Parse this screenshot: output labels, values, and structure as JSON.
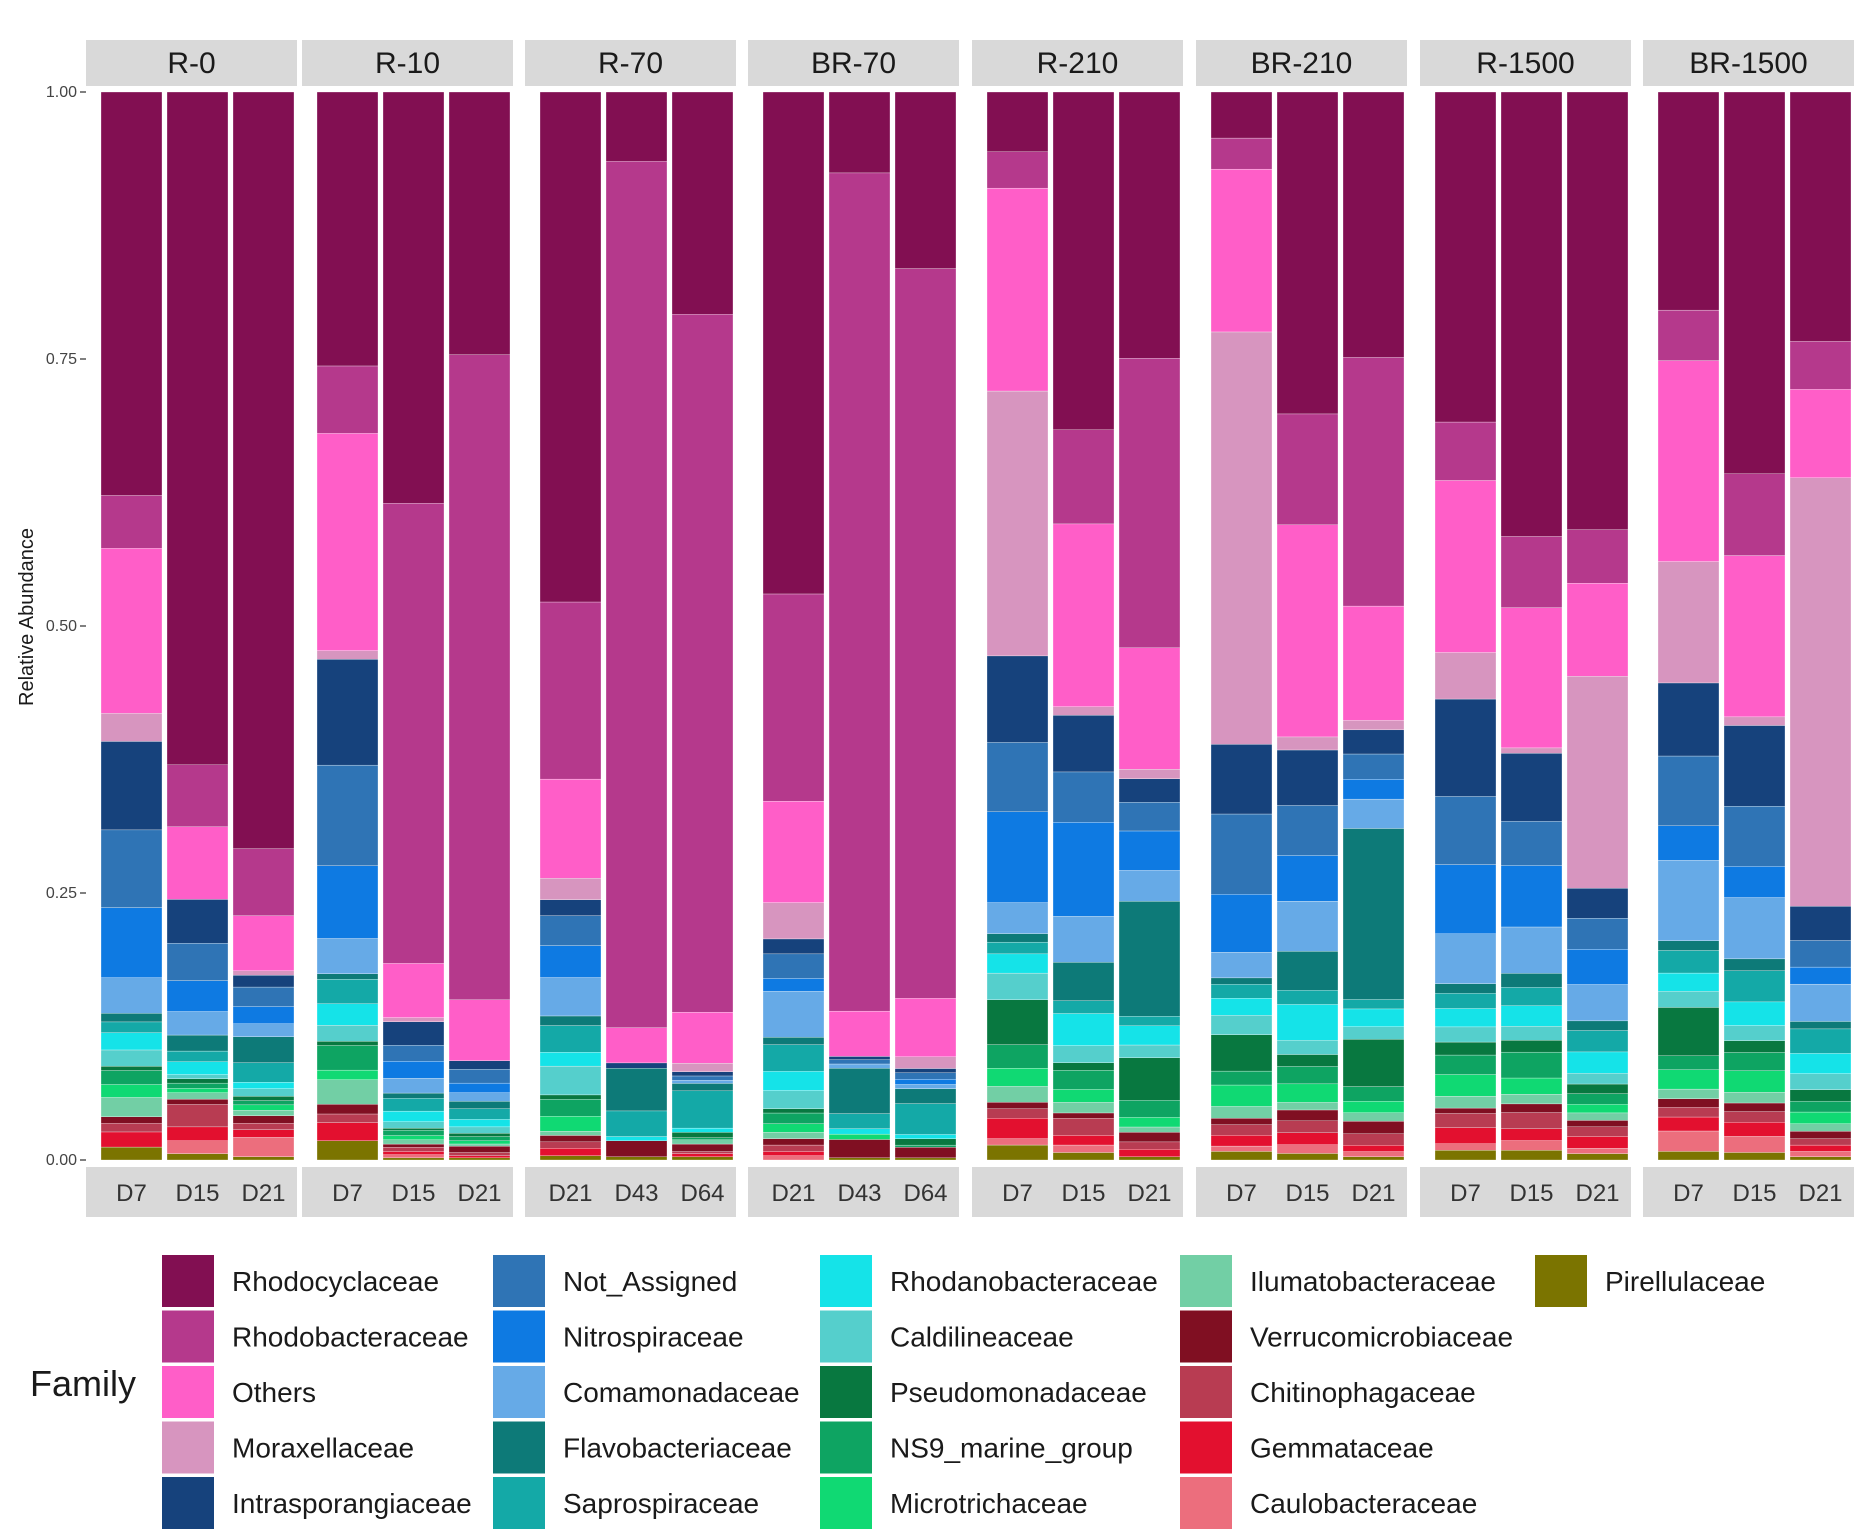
{
  "chart_data": {
    "type": "bar",
    "stacked": true,
    "ylabel": "Relative Abundance",
    "ylim": [
      0,
      1
    ],
    "yticks": [
      "0.00",
      "0.25",
      "0.50",
      "0.75",
      "1.00"
    ],
    "grid": false,
    "legend": {
      "title": "Family",
      "placement": "bottom",
      "entries": [
        {
          "name": "Rhodocyclaceae",
          "color": "#820f52"
        },
        {
          "name": "Rhodobacteraceae",
          "color": "#b5398c"
        },
        {
          "name": "Others",
          "color": "#ff5ec8"
        },
        {
          "name": "Moraxellaceae",
          "color": "#d795bf"
        },
        {
          "name": "Intrasporangiaceae",
          "color": "#16427c"
        },
        {
          "name": "Not_Assigned",
          "color": "#2f74b5"
        },
        {
          "name": "Nitrospiraceae",
          "color": "#0e7ae2"
        },
        {
          "name": "Comamonadaceae",
          "color": "#66aae7"
        },
        {
          "name": "Flavobacteriaceae",
          "color": "#0d7a78"
        },
        {
          "name": "Saprospiraceae",
          "color": "#14a9a7"
        },
        {
          "name": "Rhodanobacteraceae",
          "color": "#15e3e8"
        },
        {
          "name": "Caldilineaceae",
          "color": "#55cfcc"
        },
        {
          "name": "Pseudomonadaceae",
          "color": "#087840"
        },
        {
          "name": "NS9_marine_group",
          "color": "#0ea462"
        },
        {
          "name": "Microtrichaceae",
          "color": "#10d973"
        },
        {
          "name": "Ilumatobacteraceae",
          "color": "#72cfa5"
        },
        {
          "name": "Verrucomicrobiaceae",
          "color": "#800f22"
        },
        {
          "name": "Chitinophagaceae",
          "color": "#b83c52"
        },
        {
          "name": "Gemmataceae",
          "color": "#e3102f"
        },
        {
          "name": "Caulobacteraceae",
          "color": "#ec6e7d"
        },
        {
          "name": "Pirellulaceae",
          "color": "#7b7400"
        }
      ]
    },
    "panels": [
      {
        "name": "R-0",
        "bars": [
          {
            "label": "D7",
            "values": [
              0.374,
              0.049,
              0.153,
              0.026,
              0.082,
              0.072,
              0.065,
              0.033,
              0.008,
              0.01,
              0.016,
              0.015,
              0.004,
              0.013,
              0.012,
              0.018,
              0.006,
              0.008,
              0.014,
              0.0,
              0.012
            ]
          },
          {
            "label": "D15",
            "values": [
              0.63,
              0.058,
              0.068,
              0.0,
              0.041,
              0.035,
              0.029,
              0.022,
              0.015,
              0.01,
              0.012,
              0.004,
              0.004,
              0.005,
              0.004,
              0.006,
              0.005,
              0.021,
              0.013,
              0.012,
              0.006
            ]
          },
          {
            "label": "D21",
            "values": [
              0.7,
              0.062,
              0.051,
              0.004,
              0.011,
              0.018,
              0.016,
              0.012,
              0.024,
              0.018,
              0.006,
              0.007,
              0.004,
              0.004,
              0.005,
              0.005,
              0.007,
              0.006,
              0.007,
              0.018,
              0.003
            ]
          }
        ]
      },
      {
        "name": "R-10",
        "bars": [
          {
            "label": "D7",
            "values": [
              0.256,
              0.063,
              0.203,
              0.008,
              0.099,
              0.094,
              0.068,
              0.033,
              0.005,
              0.023,
              0.02,
              0.015,
              0.004,
              0.023,
              0.009,
              0.023,
              0.009,
              0.008,
              0.017,
              0.0,
              0.018
            ]
          },
          {
            "label": "D15",
            "values": [
              0.387,
              0.433,
              0.051,
              0.004,
              0.022,
              0.015,
              0.016,
              0.014,
              0.005,
              0.012,
              0.01,
              0.006,
              0.002,
              0.005,
              0.004,
              0.004,
              0.003,
              0.004,
              0.003,
              0.003,
              0.002
            ]
          },
          {
            "label": "D21",
            "values": [
              0.246,
              0.604,
              0.057,
              0.0,
              0.008,
              0.013,
              0.009,
              0.008,
              0.007,
              0.01,
              0.007,
              0.006,
              0.003,
              0.004,
              0.003,
              0.002,
              0.006,
              0.003,
              0.002,
              0.0,
              0.002
            ]
          }
        ]
      },
      {
        "name": "R-70",
        "bars": [
          {
            "label": "D21",
            "values": [
              0.478,
              0.166,
              0.093,
              0.02,
              0.015,
              0.028,
              0.03,
              0.036,
              0.009,
              0.025,
              0.013,
              0.027,
              0.004,
              0.016,
              0.014,
              0.004,
              0.006,
              0.006,
              0.007,
              0.0,
              0.004
            ]
          },
          {
            "label": "D43",
            "values": [
              0.065,
              0.812,
              0.033,
              0.0,
              0.005,
              0.0,
              0.0,
              0.0,
              0.04,
              0.024,
              0.004,
              0.0,
              0.0,
              0.0,
              0.0,
              0.0,
              0.015,
              0.0,
              0.0,
              0.0,
              0.003
            ]
          },
          {
            "label": "D64",
            "values": [
              0.209,
              0.656,
              0.048,
              0.008,
              0.004,
              0.004,
              0.0,
              0.003,
              0.007,
              0.035,
              0.004,
              0.0,
              0.005,
              0.002,
              0.0,
              0.004,
              0.007,
              0.002,
              0.003,
              0.0,
              0.003
            ]
          }
        ]
      },
      {
        "name": "BR-70",
        "bars": [
          {
            "label": "D21",
            "values": [
              0.47,
              0.194,
              0.095,
              0.034,
              0.014,
              0.023,
              0.012,
              0.043,
              0.007,
              0.025,
              0.018,
              0.017,
              0.004,
              0.01,
              0.008,
              0.006,
              0.006,
              0.006,
              0.004,
              0.004,
              0.0
            ]
          },
          {
            "label": "D43",
            "values": [
              0.075,
              0.777,
              0.042,
              0.0,
              0.003,
              0.004,
              0.0,
              0.004,
              0.042,
              0.014,
              0.005,
              0.0,
              0.0,
              0.0,
              0.005,
              0.0,
              0.017,
              0.0,
              0.0,
              0.0,
              0.002
            ]
          },
          {
            "label": "D64",
            "values": [
              0.166,
              0.686,
              0.055,
              0.011,
              0.004,
              0.006,
              0.005,
              0.004,
              0.014,
              0.029,
              0.004,
              0.0,
              0.006,
              0.002,
              0.0,
              0.0,
              0.01,
              0.0,
              0.0,
              0.0,
              0.002
            ]
          }
        ]
      },
      {
        "name": "R-210",
        "bars": [
          {
            "label": "D7",
            "values": [
              0.056,
              0.034,
              0.19,
              0.248,
              0.081,
              0.065,
              0.085,
              0.029,
              0.008,
              0.011,
              0.018,
              0.025,
              0.042,
              0.022,
              0.017,
              0.015,
              0.006,
              0.009,
              0.019,
              0.006,
              0.014
            ]
          },
          {
            "label": "D15",
            "values": [
              0.316,
              0.088,
              0.171,
              0.008,
              0.053,
              0.047,
              0.088,
              0.043,
              0.036,
              0.012,
              0.03,
              0.016,
              0.007,
              0.018,
              0.012,
              0.01,
              0.005,
              0.016,
              0.009,
              0.007,
              0.007
            ]
          },
          {
            "label": "D21",
            "values": [
              0.25,
              0.272,
              0.114,
              0.009,
              0.022,
              0.027,
              0.037,
              0.029,
              0.108,
              0.009,
              0.018,
              0.012,
              0.04,
              0.016,
              0.009,
              0.005,
              0.009,
              0.007,
              0.007,
              0.0,
              0.003
            ]
          }
        ]
      },
      {
        "name": "BR-210",
        "bars": [
          {
            "label": "D7",
            "values": [
              0.043,
              0.029,
              0.152,
              0.385,
              0.065,
              0.075,
              0.054,
              0.024,
              0.006,
              0.013,
              0.016,
              0.018,
              0.034,
              0.013,
              0.02,
              0.011,
              0.006,
              0.01,
              0.01,
              0.005,
              0.008
            ]
          },
          {
            "label": "D15",
            "values": [
              0.296,
              0.102,
              0.195,
              0.012,
              0.051,
              0.046,
              0.042,
              0.046,
              0.036,
              0.013,
              0.033,
              0.013,
              0.011,
              0.016,
              0.017,
              0.007,
              0.01,
              0.011,
              0.011,
              0.008,
              0.006
            ]
          },
          {
            "label": "D21",
            "values": [
              0.253,
              0.237,
              0.109,
              0.009,
              0.023,
              0.024,
              0.019,
              0.028,
              0.163,
              0.009,
              0.017,
              0.012,
              0.045,
              0.014,
              0.011,
              0.008,
              0.012,
              0.011,
              0.006,
              0.005,
              0.003
            ]
          }
        ]
      },
      {
        "name": "R-1500",
        "bars": [
          {
            "label": "D7",
            "values": [
              0.305,
              0.054,
              0.159,
              0.043,
              0.09,
              0.063,
              0.064,
              0.046,
              0.009,
              0.014,
              0.017,
              0.014,
              0.012,
              0.018,
              0.02,
              0.011,
              0.005,
              0.013,
              0.015,
              0.006,
              0.009
            ]
          },
          {
            "label": "D15",
            "values": [
              0.412,
              0.066,
              0.13,
              0.005,
              0.063,
              0.041,
              0.057,
              0.043,
              0.013,
              0.017,
              0.019,
              0.013,
              0.011,
              0.024,
              0.015,
              0.009,
              0.008,
              0.015,
              0.011,
              0.009,
              0.009
            ]
          },
          {
            "label": "D21",
            "values": [
              0.409,
              0.05,
              0.087,
              0.198,
              0.028,
              0.029,
              0.033,
              0.034,
              0.009,
              0.02,
              0.02,
              0.01,
              0.009,
              0.01,
              0.008,
              0.007,
              0.006,
              0.009,
              0.011,
              0.005,
              0.006
            ]
          }
        ]
      },
      {
        "name": "BR-1500",
        "bars": [
          {
            "label": "D7",
            "values": [
              0.203,
              0.047,
              0.187,
              0.113,
              0.068,
              0.065,
              0.032,
              0.075,
              0.009,
              0.021,
              0.017,
              0.015,
              0.045,
              0.013,
              0.018,
              0.009,
              0.008,
              0.009,
              0.013,
              0.019,
              0.008
            ]
          },
          {
            "label": "D15",
            "values": [
              0.355,
              0.076,
              0.15,
              0.008,
              0.075,
              0.056,
              0.029,
              0.057,
              0.011,
              0.029,
              0.022,
              0.014,
              0.011,
              0.017,
              0.02,
              0.01,
              0.008,
              0.01,
              0.013,
              0.015,
              0.007
            ]
          },
          {
            "label": "D21",
            "values": [
              0.234,
              0.045,
              0.083,
              0.402,
              0.032,
              0.025,
              0.016,
              0.035,
              0.007,
              0.023,
              0.019,
              0.015,
              0.011,
              0.01,
              0.011,
              0.007,
              0.007,
              0.006,
              0.006,
              0.005,
              0.003
            ]
          }
        ]
      }
    ]
  }
}
